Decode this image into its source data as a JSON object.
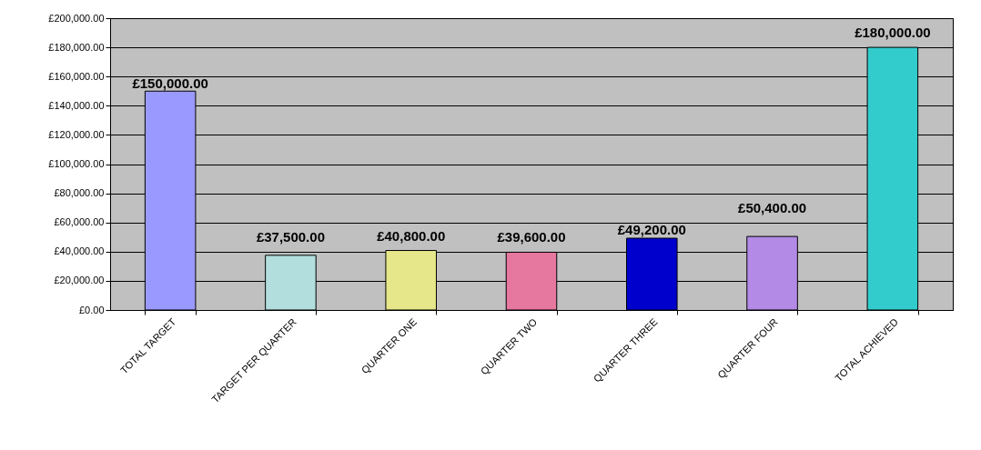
{
  "chart_data": {
    "type": "bar",
    "categories": [
      "TOTAL TARGET",
      "TARGET PER QUARTER",
      "QUARTER ONE",
      "QUARTER TWO",
      "QUARTER THREE",
      "QUARTER FOUR",
      "TOTAL ACHIEVED"
    ],
    "values": [
      150000,
      37500,
      40800,
      39600,
      49200,
      50400,
      180000
    ],
    "colors": [
      "#9999ff",
      "#b3dede",
      "#e6e68a",
      "#e6779f",
      "#0000cc",
      "#b38ae6",
      "#33cccc"
    ],
    "value_labels": [
      "£150,000.00",
      "£37,500.00",
      "£40,800.00",
      "£39,600.00",
      "£49,200.00",
      "£50,400.00",
      "£180,000.00"
    ],
    "ylim": [
      0,
      200000
    ],
    "yticks": [
      {
        "value": 0,
        "label": "£0.00"
      },
      {
        "value": 20000,
        "label": "£20,000.00"
      },
      {
        "value": 40000,
        "label": "£40,000.00"
      },
      {
        "value": 60000,
        "label": "£60,000.00"
      },
      {
        "value": 80000,
        "label": "£80,000.00"
      },
      {
        "value": 100000,
        "label": "£100,000.00"
      },
      {
        "value": 120000,
        "label": "£120,000.00"
      },
      {
        "value": 140000,
        "label": "£140,000.00"
      },
      {
        "value": 160000,
        "label": "£160,000.00"
      },
      {
        "value": 180000,
        "label": "£180,000.00"
      },
      {
        "value": 200000,
        "label": "£200,000.00"
      }
    ],
    "grid": "y"
  }
}
